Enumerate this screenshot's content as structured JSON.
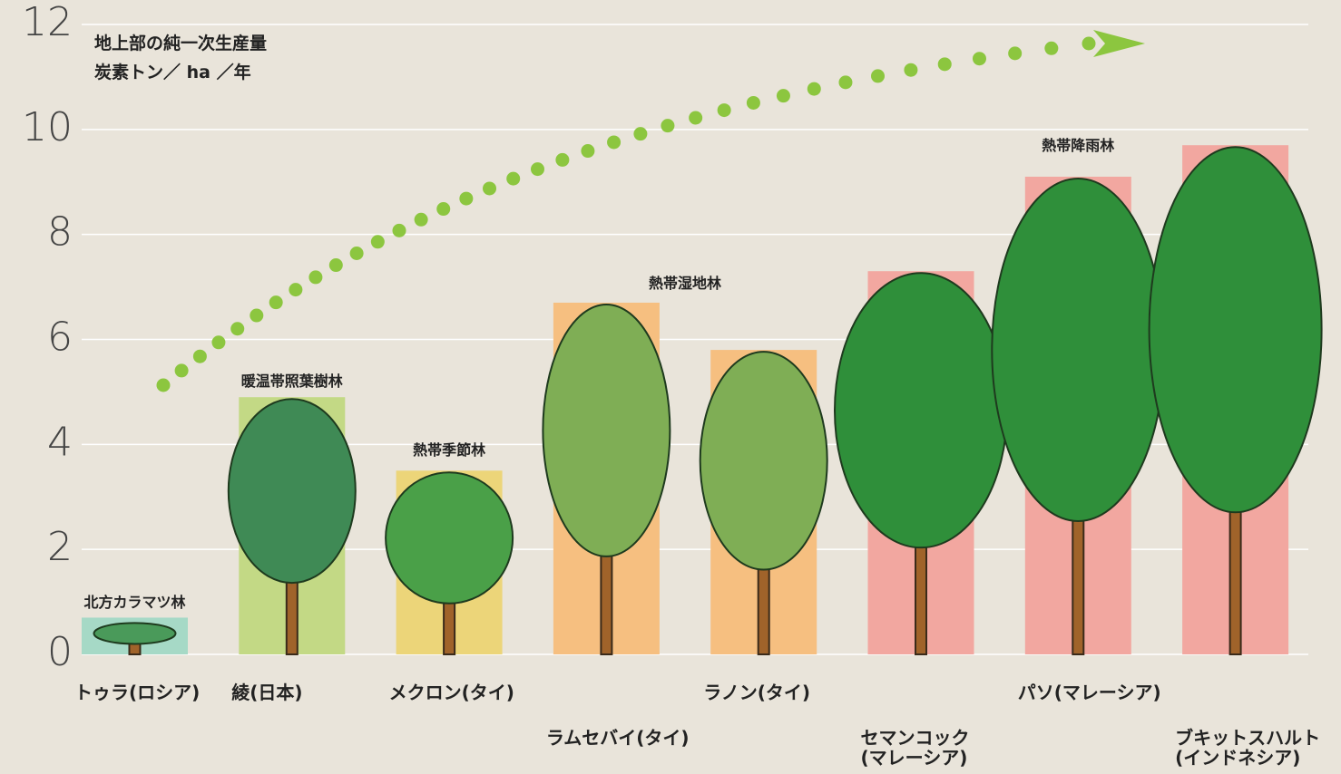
{
  "chart_data": {
    "type": "bar",
    "y_title_lines": [
      "地上部の純一次生産量",
      "炭素トン／ ha ／年"
    ],
    "categories": [
      "トゥラ(ロシア)",
      "綾(日本)",
      "メクロン(タイ)",
      "ラムセバイ(タイ)",
      "ラノン(タイ)",
      "セマンコック\n(マレーシア)",
      "パソ(マレーシア)",
      "ブキットスハルト\n(インドネシア)"
    ],
    "values": [
      0.7,
      4.9,
      3.5,
      6.7,
      5.8,
      7.3,
      9.1,
      9.7
    ],
    "colors": [
      "#a6d9c6",
      "#c3d985",
      "#ecd579",
      "#f6bf80",
      "#f6bf80",
      "#f2a7a0",
      "#f2a7a0",
      "#f2a7a0"
    ],
    "annotations": [
      "北方カラマツ林",
      "暖温帯照葉樹林",
      "熱帯季節林",
      "熱帯湿地林",
      "熱帯降雨林"
    ],
    "ylim": [
      0,
      12
    ],
    "yticks": [
      0,
      2,
      4,
      6,
      8,
      10,
      12
    ],
    "grid": true
  }
}
